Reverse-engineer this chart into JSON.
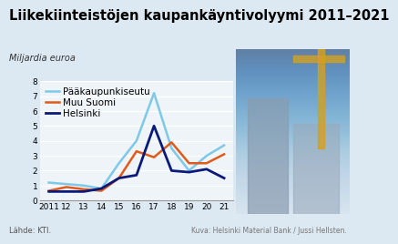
{
  "title": "Liikekiinteistöjen kaupankäyntivolyymi 2011–2021",
  "ylabel": "Miljardia euroa",
  "source": "Lähde: KTI.",
  "photo_credit": "Kuva: Helsinki Material Bank / Jussi Hellsten.",
  "years": [
    2011,
    2012,
    2013,
    2014,
    2015,
    2016,
    2017,
    2018,
    2019,
    2020,
    2021
  ],
  "paakaupunkiseutu": [
    1.2,
    1.1,
    1.0,
    0.8,
    2.5,
    4.0,
    7.2,
    3.5,
    2.0,
    3.0,
    3.7
  ],
  "muu_suomi": [
    0.65,
    0.9,
    0.75,
    0.65,
    1.5,
    3.3,
    2.9,
    3.9,
    2.5,
    2.5,
    3.1
  ],
  "helsinki": [
    0.6,
    0.6,
    0.6,
    0.8,
    1.5,
    1.7,
    5.0,
    2.0,
    1.9,
    2.1,
    1.5
  ],
  "color_paakaupunkiseutu": "#7ec8e8",
  "color_muu_suomi": "#e05a1a",
  "color_helsinki": "#0a1a7a",
  "ylim": [
    0,
    8
  ],
  "yticks": [
    0,
    1,
    2,
    3,
    4,
    5,
    6,
    7,
    8
  ],
  "bg_color": "#dce8f2",
  "plot_bg": "#eef4f8",
  "title_fontsize": 10.5,
  "ylabel_fontsize": 7,
  "legend_fontsize": 7.5,
  "tick_fontsize": 6.5,
  "source_fontsize": 6
}
